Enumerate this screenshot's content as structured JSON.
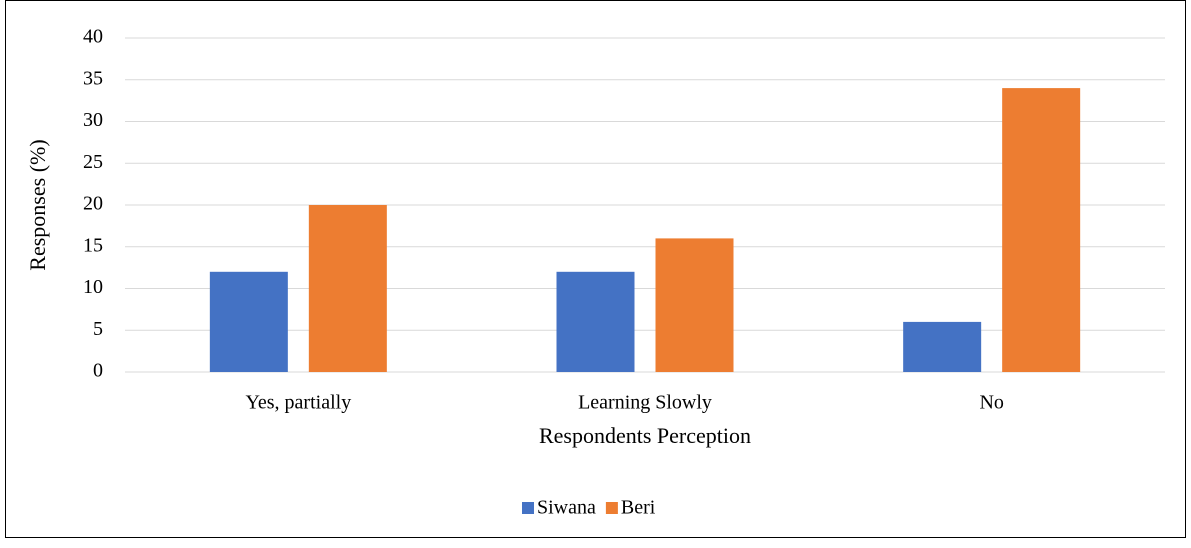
{
  "chart_data": {
    "type": "bar",
    "y_label": "Responses (%)",
    "x_label": "Respondents Perception",
    "categories": [
      "Yes, partially",
      "Learning Slowly",
      "No"
    ],
    "series": [
      {
        "name": "Siwana",
        "color": "#4472c4",
        "values": [
          12,
          12,
          6
        ]
      },
      {
        "name": "Beri",
        "color": "#ed7d31",
        "values": [
          20,
          16,
          34
        ]
      }
    ],
    "ylim": [
      0,
      40
    ],
    "yticks": [
      0,
      5,
      10,
      15,
      20,
      25,
      30,
      35,
      40
    ],
    "grid": true,
    "legend": "bottom"
  }
}
